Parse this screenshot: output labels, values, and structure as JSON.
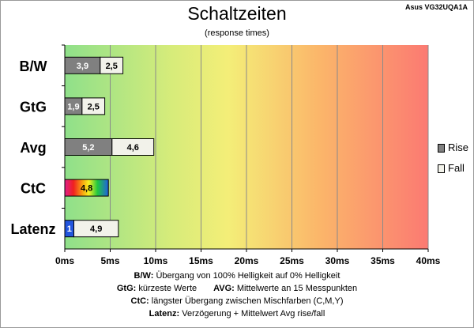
{
  "header": {
    "title": "Schaltzeiten",
    "subtitle": "(response times)",
    "model": "Asus VG32UQA1A"
  },
  "legend": [
    {
      "label": "Rise",
      "color": "#808080"
    },
    {
      "label": "Fall",
      "color": "#f2f2ea"
    }
  ],
  "footer": [
    {
      "lead": "B/W:",
      "text": " Übergang von 100% Helligkeit auf 0% Helligkeit"
    },
    {
      "lead": "GtG:",
      "text": " kürzeste Werte",
      "lead2": "AVG:",
      "text2": " Mittelwerte an 15 Messpunkten"
    },
    {
      "lead": "CtC:",
      "text": " längster Übergang zwischen Mischfarben (C,M,Y)"
    },
    {
      "lead": "Latenz:",
      "text": " Verzögerung + Mittelwert Avg rise/fall"
    }
  ],
  "chart_data": {
    "type": "bar",
    "orientation": "horizontal",
    "stacked": true,
    "categories": [
      "B/W",
      "GtG",
      "Avg",
      "CtC",
      "Latenz"
    ],
    "series": [
      {
        "name": "Rise",
        "values": [
          3.9,
          1.9,
          5.2,
          4.8,
          1
        ],
        "labels": [
          "3,9",
          "1,9",
          "5,2",
          "4,8",
          "1"
        ]
      },
      {
        "name": "Fall",
        "values": [
          2.5,
          2.5,
          4.6,
          null,
          4.9
        ],
        "labels": [
          "2,5",
          "2,5",
          "4,6",
          "",
          "4,9"
        ]
      }
    ],
    "ctc_fill": "rainbow",
    "latenz_rise_color": "#2255dd",
    "xticks": [
      "0ms",
      "5ms",
      "10ms",
      "15ms",
      "20ms",
      "25ms",
      "30ms",
      "35ms",
      "40ms"
    ],
    "xlim": [
      0,
      40
    ],
    "grid": true,
    "background": "gradient green-yellow-red",
    "legend_position": "right"
  }
}
